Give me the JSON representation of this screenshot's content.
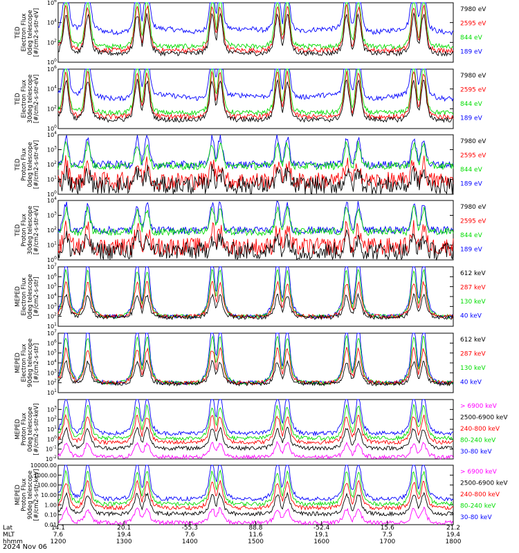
{
  "chart_data": {
    "type": "line",
    "date_caption": "2024 Nov 06",
    "x_rows": [
      {
        "label": "Lat",
        "values": [
          "14.1",
          "20.1",
          "-55.3",
          "88.8",
          "-52.4",
          "15.6",
          "21.2"
        ]
      },
      {
        "label": "MLT",
        "values": [
          "7.6",
          "19.4",
          "7.6",
          "11.6",
          "19.1",
          "7.5",
          "19.4"
        ]
      },
      {
        "label": "hhmm",
        "values": [
          "1200",
          "1300",
          "1400",
          "1500",
          "1600",
          "1700",
          "1800"
        ]
      }
    ],
    "panels": [
      {
        "id": "ted-e-0",
        "ylabel": [
          "TED",
          "Electron Flux",
          "0deg telescope",
          "[#/cm2-s-str-eV]"
        ],
        "ylog": true,
        "ylim_exp": [
          0,
          6
        ],
        "tick_exps": [
          0,
          2,
          4,
          6
        ],
        "series": [
          {
            "name": "7980 eV",
            "color": "#000000"
          },
          {
            "name": "2595 eV",
            "color": "#ff0000"
          },
          {
            "name": "844 eV",
            "color": "#00dd00"
          },
          {
            "name": "189 eV",
            "color": "#0000ff"
          }
        ]
      },
      {
        "id": "ted-e-30",
        "ylabel": [
          "TED",
          "Electron Flux",
          "30deg telescope",
          "[#/cm2-s-str-eV]"
        ],
        "ylog": true,
        "ylim_exp": [
          0,
          6
        ],
        "tick_exps": [
          0,
          2,
          4,
          6
        ],
        "series": [
          {
            "name": "7980 eV",
            "color": "#000000"
          },
          {
            "name": "2595 eV",
            "color": "#ff0000"
          },
          {
            "name": "844 eV",
            "color": "#00dd00"
          },
          {
            "name": "189 eV",
            "color": "#0000ff"
          }
        ]
      },
      {
        "id": "ted-p-0",
        "ylabel": [
          "TED",
          "Proton Flux",
          "0deg telescope",
          "[#/cm2-s-str-eV]"
        ],
        "ylog": true,
        "ylim_exp": [
          0,
          4
        ],
        "tick_exps": [
          0,
          1,
          2,
          3,
          4
        ],
        "series": [
          {
            "name": "7980 eV",
            "color": "#000000"
          },
          {
            "name": "2595 eV",
            "color": "#ff0000"
          },
          {
            "name": "844 eV",
            "color": "#00dd00"
          },
          {
            "name": "189 eV",
            "color": "#0000ff"
          }
        ]
      },
      {
        "id": "ted-p-30",
        "ylabel": [
          "TED",
          "Proton Flux",
          "30deg telescope",
          "[#/cm2-s-str-eV]"
        ],
        "ylog": true,
        "ylim_exp": [
          0,
          4
        ],
        "tick_exps": [
          0,
          1,
          2,
          3,
          4
        ],
        "series": [
          {
            "name": "7980 eV",
            "color": "#000000"
          },
          {
            "name": "2595 eV",
            "color": "#ff0000"
          },
          {
            "name": "844 eV",
            "color": "#00dd00"
          },
          {
            "name": "189 eV",
            "color": "#0000ff"
          }
        ]
      },
      {
        "id": "meped-e-0",
        "ylabel": [
          "MEPED",
          "Electron Flux",
          "0deg telescope",
          "[#/cm2-s-str]"
        ],
        "ylog": true,
        "ylim_exp": [
          1,
          7
        ],
        "tick_exps": [
          1,
          2,
          3,
          4,
          5,
          6,
          7
        ],
        "series": [
          {
            "name": "612 keV",
            "color": "#000000"
          },
          {
            "name": "287 keV",
            "color": "#ff0000"
          },
          {
            "name": "130 keV",
            "color": "#00dd00"
          },
          {
            "name": "40 keV",
            "color": "#0000ff"
          }
        ]
      },
      {
        "id": "meped-e-90",
        "ylabel": [
          "MEPED",
          "Electron Flux",
          "90deg telescope",
          "[#/cm2-s-str]"
        ],
        "ylog": true,
        "ylim_exp": [
          1,
          7
        ],
        "tick_exps": [
          1,
          2,
          3,
          4,
          5,
          6,
          7
        ],
        "series": [
          {
            "name": "612 keV",
            "color": "#000000"
          },
          {
            "name": "287 keV",
            "color": "#ff0000"
          },
          {
            "name": "130 keV",
            "color": "#00dd00"
          },
          {
            "name": "40 keV",
            "color": "#0000ff"
          }
        ]
      },
      {
        "id": "meped-p-0",
        "ylabel": [
          "MEPED",
          "Proton Flux",
          "0deg telescope",
          "[#/cm2-s-str-keV]"
        ],
        "ylog": true,
        "ylim_exp": [
          -2,
          4
        ],
        "tick_exps": [
          -2,
          -1,
          0,
          1,
          2,
          3
        ],
        "series": [
          {
            "name": "> 6900 keV",
            "color": "#ff00ff"
          },
          {
            "name": "2500-6900 keV",
            "color": "#000000"
          },
          {
            "name": "240-800 keV",
            "color": "#ff0000"
          },
          {
            "name": "80-240 keV",
            "color": "#00dd00"
          },
          {
            "name": "30-80 keV",
            "color": "#0000ff"
          }
        ]
      },
      {
        "id": "meped-p-90",
        "ylabel": [
          "MEPED",
          "Proton Flux",
          "90deg telescope",
          "[#/cm2-s-str-keV]"
        ],
        "ylog": true,
        "ylim_exp": [
          -2,
          4
        ],
        "tick_labels_literal": [
          "0.01",
          "0.10",
          "1.00",
          "10.00",
          "100.00",
          "1000.00",
          "10000.00"
        ],
        "tick_exps": [
          -2,
          -1,
          0,
          1,
          2,
          3,
          4
        ],
        "series": [
          {
            "name": "> 6900 keV",
            "color": "#ff00ff"
          },
          {
            "name": "2500-6900 keV",
            "color": "#000000"
          },
          {
            "name": "240-800 keV",
            "color": "#ff0000"
          },
          {
            "name": "80-240 keV",
            "color": "#00dd00"
          },
          {
            "name": "30-80 keV",
            "color": "#0000ff"
          }
        ]
      }
    ]
  }
}
